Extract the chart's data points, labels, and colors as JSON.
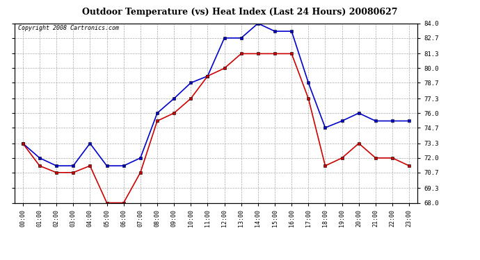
{
  "title": "Outdoor Temperature (vs) Heat Index (Last 24 Hours) 20080627",
  "copyright": "Copyright 2008 Cartronics.com",
  "hours": [
    "00:00",
    "01:00",
    "02:00",
    "03:00",
    "04:00",
    "05:00",
    "06:00",
    "07:00",
    "08:00",
    "09:00",
    "10:00",
    "11:00",
    "12:00",
    "13:00",
    "14:00",
    "15:00",
    "16:00",
    "17:00",
    "18:00",
    "19:00",
    "20:00",
    "21:00",
    "22:00",
    "23:00"
  ],
  "blue_data": [
    73.3,
    72.0,
    71.3,
    71.3,
    73.3,
    71.3,
    71.3,
    72.0,
    76.0,
    77.3,
    78.7,
    79.3,
    82.7,
    82.7,
    84.0,
    83.3,
    83.3,
    78.7,
    74.7,
    75.3,
    76.0,
    75.3,
    75.3,
    75.3
  ],
  "red_data": [
    73.3,
    71.3,
    70.7,
    70.7,
    71.3,
    68.0,
    68.0,
    70.7,
    75.3,
    76.0,
    77.3,
    79.3,
    80.0,
    81.3,
    81.3,
    81.3,
    81.3,
    77.3,
    71.3,
    72.0,
    73.3,
    72.0,
    72.0,
    71.3
  ],
  "ylim_min": 68.0,
  "ylim_max": 84.0,
  "yticks": [
    68.0,
    69.3,
    70.7,
    72.0,
    73.3,
    74.7,
    76.0,
    77.3,
    78.7,
    80.0,
    81.3,
    82.7,
    84.0
  ],
  "blue_color": "#0000CC",
  "red_color": "#CC0000",
  "bg_color": "#FFFFFF",
  "plot_bg_color": "#FFFFFF",
  "grid_color": "#AAAAAA",
  "title_fontsize": 9,
  "copyright_fontsize": 6
}
